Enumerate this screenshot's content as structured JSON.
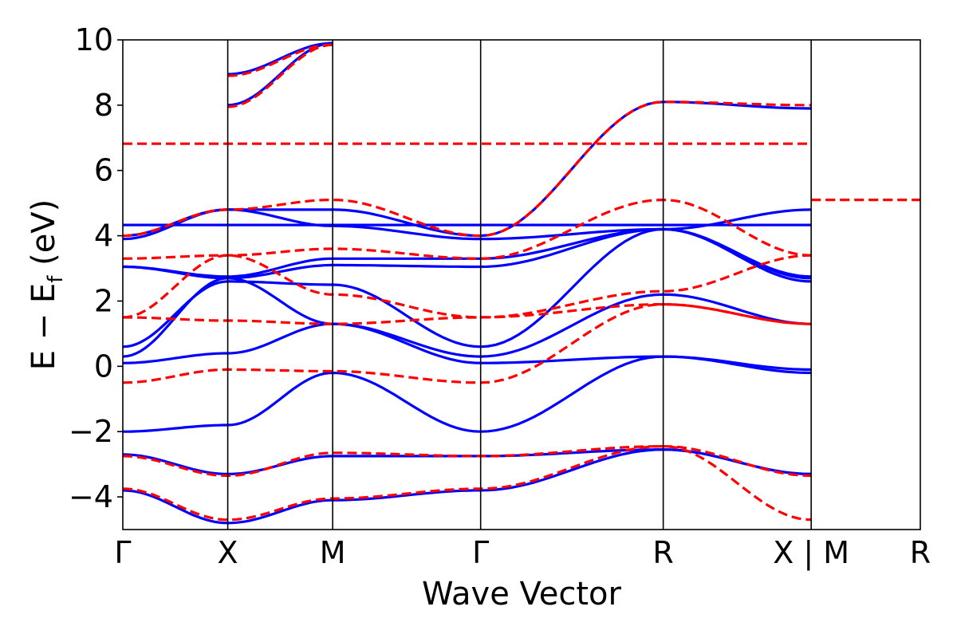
{
  "chart_data": {
    "type": "line",
    "xlabel": "Wave Vector",
    "ylabel_main": "E − E",
    "ylabel_sub": "f",
    "ylabel_unit": " (eV)",
    "ylim": [
      -5,
      10
    ],
    "yticks": [
      10,
      8,
      6,
      4,
      2,
      0,
      -2,
      -4
    ],
    "ytick_labels": [
      "10",
      "8",
      "6",
      "4",
      "2",
      "0",
      "−2",
      "−4"
    ],
    "xlim": [
      0,
      7.6
    ],
    "kpoints": [
      {
        "label": "Γ",
        "x": 0.0
      },
      {
        "label": "X",
        "x": 1.0
      },
      {
        "label": "M",
        "x": 2.0
      },
      {
        "label": "Γ",
        "x": 3.41
      },
      {
        "label": "R",
        "x": 5.15
      },
      {
        "label": "X | M",
        "x": 6.56
      },
      {
        "label": "R",
        "x": 7.6
      }
    ],
    "grid": false,
    "legend": "none",
    "colors": {
      "blue": "#0000ff",
      "red": "#ff0000"
    },
    "series": [
      {
        "style": "blue-solid",
        "x": [
          0,
          1,
          2,
          3.41,
          5.15,
          6.56
        ],
        "y": [
          4.33,
          4.33,
          4.33,
          4.33,
          4.33,
          4.33
        ]
      },
      {
        "style": "blue-solid",
        "x": [
          0,
          1,
          2,
          3.41,
          5.15,
          6.56
        ],
        "y": [
          -2.0,
          -1.8,
          -0.2,
          -2.0,
          0.3,
          -0.2
        ]
      },
      {
        "style": "blue-solid",
        "x": [
          0,
          1,
          2,
          3.41,
          5.15,
          6.56
        ],
        "y": [
          0.1,
          0.4,
          1.3,
          0.1,
          0.3,
          -0.1
        ]
      },
      {
        "style": "blue-solid",
        "x": [
          0,
          1,
          2,
          3.41,
          5.15,
          6.56
        ],
        "y": [
          0.3,
          2.7,
          1.3,
          0.3,
          2.2,
          1.3
        ]
      },
      {
        "style": "blue-solid",
        "x": [
          0,
          1,
          2,
          3.41,
          5.15,
          6.56
        ],
        "y": [
          0.6,
          2.6,
          2.5,
          0.6,
          4.2,
          2.6
        ]
      },
      {
        "style": "blue-solid",
        "x": [
          0,
          1,
          2,
          3.41,
          5.15,
          6.56
        ],
        "y": [
          3.05,
          2.7,
          3.1,
          3.05,
          4.2,
          2.7
        ]
      },
      {
        "style": "blue-solid",
        "x": [
          0,
          1,
          2,
          3.41,
          5.15,
          6.56
        ],
        "y": [
          3.05,
          2.75,
          3.3,
          3.3,
          4.2,
          2.75
        ]
      },
      {
        "style": "blue-solid",
        "x": [
          0,
          1,
          2,
          3.41,
          5.15,
          6.56
        ],
        "y": [
          3.9,
          4.8,
          4.3,
          3.9,
          4.2,
          4.8
        ]
      },
      {
        "style": "blue-solid",
        "x": [
          0,
          1,
          2,
          3.41,
          5.15,
          6.56
        ],
        "y": [
          4.0,
          4.8,
          4.8,
          4.0,
          8.1,
          7.9
        ]
      },
      {
        "style": "blue-solid",
        "x": [
          0,
          1,
          2,
          3.41,
          5.15,
          6.56
        ],
        "y": [
          -2.7,
          -3.3,
          -2.75,
          -2.75,
          -2.55,
          -3.3
        ]
      },
      {
        "style": "blue-solid",
        "x": [
          0,
          1,
          2,
          3.41,
          5.15,
          6.56
        ],
        "y": [
          -3.8,
          -4.8,
          -4.1,
          -3.8,
          -2.55,
          -3.3
        ]
      },
      {
        "style": "blue-solid",
        "x": [
          1,
          2
        ],
        "y": [
          8.0,
          9.9
        ]
      },
      {
        "style": "blue-solid",
        "x": [
          1,
          2
        ],
        "y": [
          8.95,
          9.9
        ]
      },
      {
        "style": "red-dashed",
        "x": [
          0,
          1,
          2,
          3.41,
          5.15,
          6.56
        ],
        "y": [
          6.82,
          6.82,
          6.82,
          6.82,
          6.82,
          6.82
        ]
      },
      {
        "style": "red-dashed",
        "x": [
          0,
          1,
          2,
          3.41,
          5.15,
          6.56
        ],
        "y": [
          -0.5,
          -0.1,
          -0.15,
          -0.5,
          1.9,
          1.3
        ]
      },
      {
        "style": "red-dashed",
        "x": [
          0,
          1,
          2,
          3.41,
          5.15,
          6.56
        ],
        "y": [
          1.5,
          1.4,
          1.3,
          1.5,
          1.9,
          1.3
        ]
      },
      {
        "style": "red-dashed",
        "x": [
          0,
          1,
          2,
          3.41,
          5.15,
          6.56
        ],
        "y": [
          1.5,
          3.4,
          2.2,
          1.5,
          2.3,
          3.4
        ]
      },
      {
        "style": "red-dashed",
        "x": [
          0,
          1,
          2,
          3.41,
          5.15,
          6.56
        ],
        "y": [
          3.3,
          3.4,
          3.6,
          3.3,
          5.1,
          3.4
        ]
      },
      {
        "style": "red-dashed",
        "x": [
          0,
          1,
          2,
          3.41,
          5.15,
          6.56
        ],
        "y": [
          4.0,
          4.8,
          5.1,
          4.0,
          8.1,
          8.0
        ]
      },
      {
        "style": "red-dashed",
        "x": [
          0,
          1,
          2,
          3.41,
          5.15,
          6.56
        ],
        "y": [
          -2.75,
          -3.35,
          -2.65,
          -2.75,
          -2.45,
          -3.35
        ]
      },
      {
        "style": "red-dashed",
        "x": [
          0,
          1,
          2,
          3.41,
          5.15,
          6.56
        ],
        "y": [
          -3.75,
          -4.7,
          -4.05,
          -3.75,
          -2.45,
          -4.7
        ]
      },
      {
        "style": "red-dashed",
        "x": [
          1,
          2
        ],
        "y": [
          7.95,
          9.85
        ]
      },
      {
        "style": "red-dashed",
        "x": [
          1,
          2
        ],
        "y": [
          8.9,
          9.85
        ]
      },
      {
        "style": "red-dashed",
        "x": [
          6.56,
          7.6
        ],
        "y": [
          5.1,
          5.1
        ]
      }
    ]
  }
}
